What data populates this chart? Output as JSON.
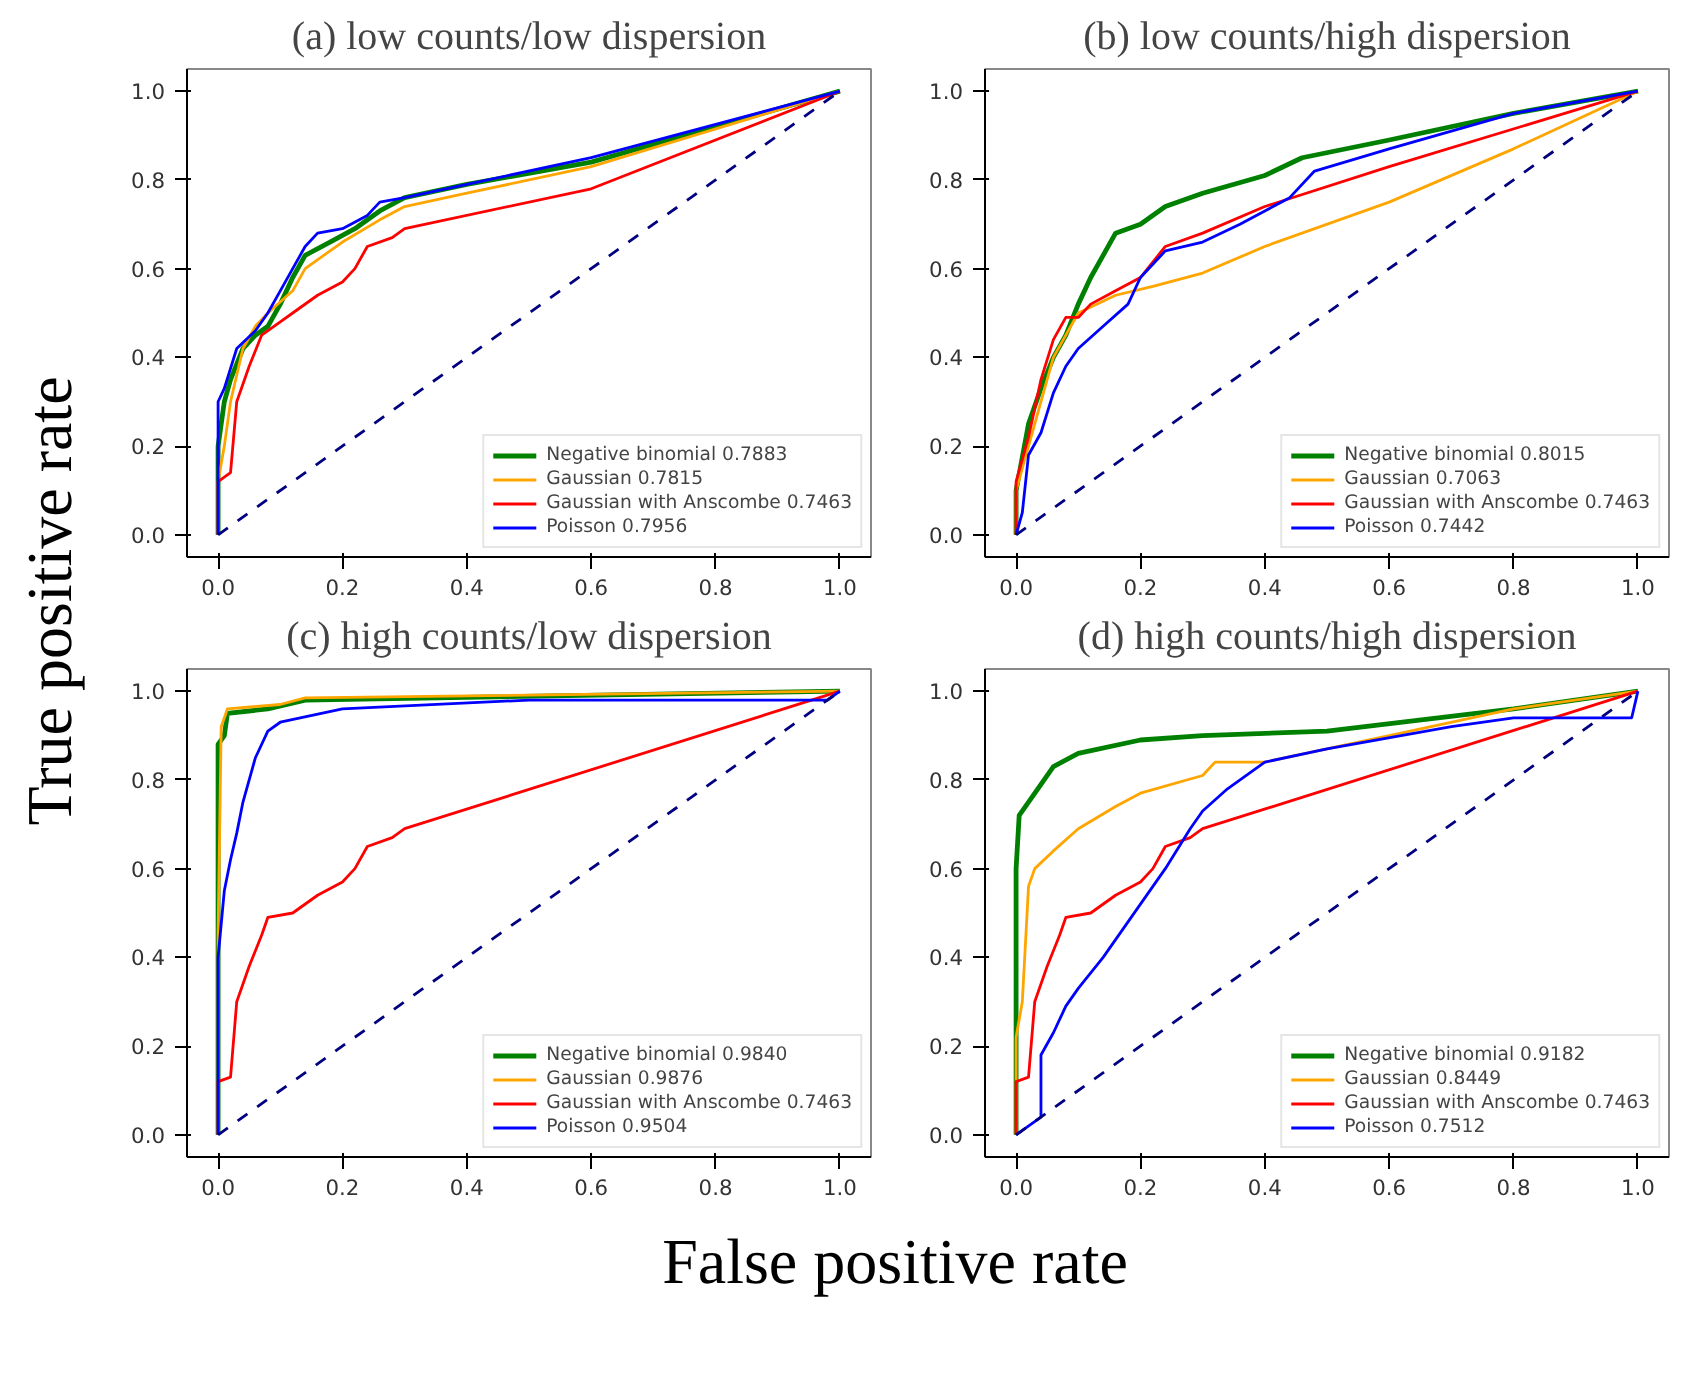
{
  "chart_data": [
    {
      "type": "line",
      "title": "(a) low counts/low dispersion",
      "ylabel": "True positive rate",
      "xlim": [
        -0.05,
        1.05
      ],
      "ylim": [
        -0.05,
        1.05
      ],
      "xticks": [
        {
          "value": 0,
          "label": "0.0"
        },
        {
          "value": 0.2,
          "label": "0.2"
        },
        {
          "value": 0.4,
          "label": "0.4"
        },
        {
          "value": 0.6,
          "label": "0.6"
        },
        {
          "value": 0.8,
          "label": "0.8"
        },
        {
          "value": 1,
          "label": "1.0"
        }
      ],
      "yticks": [
        {
          "value": 0,
          "label": "0.0"
        },
        {
          "value": 0.2,
          "label": "0.2"
        },
        {
          "value": 0.4,
          "label": "0.4"
        },
        {
          "value": 0.6,
          "label": "0.6"
        },
        {
          "value": 0.8,
          "label": "0.8"
        },
        {
          "value": 1,
          "label": "1.0"
        }
      ],
      "grid": false,
      "legend": "bottom right",
      "series": [
        {
          "name": "Negative binomial 0.7883",
          "color": "#008000",
          "x": [
            0,
            0,
            0.01,
            0.02,
            0.04,
            0.06,
            0.08,
            0.1,
            0.12,
            0.14,
            0.18,
            0.22,
            0.26,
            0.3,
            0.4,
            0.6,
            1
          ],
          "values": [
            0,
            0.2,
            0.3,
            0.35,
            0.42,
            0.45,
            0.47,
            0.52,
            0.58,
            0.63,
            0.66,
            0.69,
            0.73,
            0.76,
            0.79,
            0.84,
            1
          ]
        },
        {
          "name": "Gaussian 0.7815",
          "color": "#ffa500",
          "x": [
            0,
            0,
            0.01,
            0.02,
            0.04,
            0.06,
            0.08,
            0.12,
            0.14,
            0.2,
            0.26,
            0.3,
            0.4,
            0.6,
            1
          ],
          "values": [
            0,
            0.12,
            0.2,
            0.3,
            0.42,
            0.47,
            0.5,
            0.55,
            0.6,
            0.66,
            0.71,
            0.74,
            0.77,
            0.83,
            1
          ]
        },
        {
          "name": "Gaussian with Anscombe 0.7463",
          "color": "#ff0000",
          "x": [
            0,
            0,
            0.02,
            0.03,
            0.05,
            0.07,
            0.1,
            0.12,
            0.16,
            0.2,
            0.22,
            0.24,
            0.28,
            0.3,
            0.6,
            1
          ],
          "values": [
            0,
            0.12,
            0.14,
            0.3,
            0.38,
            0.45,
            0.48,
            0.5,
            0.54,
            0.57,
            0.6,
            0.65,
            0.67,
            0.69,
            0.78,
            1
          ]
        },
        {
          "name": "Poisson 0.7956",
          "color": "#0000ff",
          "x": [
            0,
            0,
            0.01,
            0.03,
            0.06,
            0.08,
            0.1,
            0.12,
            0.14,
            0.16,
            0.2,
            0.24,
            0.26,
            0.3,
            0.4,
            0.6,
            1
          ],
          "values": [
            0,
            0.3,
            0.33,
            0.42,
            0.46,
            0.5,
            0.55,
            0.6,
            0.65,
            0.68,
            0.69,
            0.72,
            0.75,
            0.76,
            0.79,
            0.85,
            1
          ]
        },
        {
          "color": "#000080",
          "line_style": "dashed",
          "x": [
            0,
            1
          ],
          "values": [
            0,
            1
          ]
        }
      ]
    },
    {
      "type": "line",
      "title": "(b) low counts/high dispersion",
      "xlim": [
        -0.05,
        1.05
      ],
      "ylim": [
        -0.05,
        1.05
      ],
      "xticks": [
        {
          "value": 0,
          "label": "0.0"
        },
        {
          "value": 0.2,
          "label": "0.2"
        },
        {
          "value": 0.4,
          "label": "0.4"
        },
        {
          "value": 0.6,
          "label": "0.6"
        },
        {
          "value": 0.8,
          "label": "0.8"
        },
        {
          "value": 1,
          "label": "1.0"
        }
      ],
      "yticks": [
        {
          "value": 0,
          "label": "0.0"
        },
        {
          "value": 0.2,
          "label": "0.2"
        },
        {
          "value": 0.4,
          "label": "0.4"
        },
        {
          "value": 0.6,
          "label": "0.6"
        },
        {
          "value": 0.8,
          "label": "0.8"
        },
        {
          "value": 1,
          "label": "1.0"
        }
      ],
      "grid": false,
      "legend": "bottom right",
      "series": [
        {
          "name": "Negative binomial 0.8015",
          "color": "#008000",
          "x": [
            0,
            0,
            0.02,
            0.04,
            0.06,
            0.08,
            0.1,
            0.12,
            0.14,
            0.16,
            0.2,
            0.24,
            0.3,
            0.4,
            0.46,
            0.6,
            0.8,
            1
          ],
          "values": [
            0,
            0.1,
            0.25,
            0.33,
            0.4,
            0.45,
            0.52,
            0.58,
            0.63,
            0.68,
            0.7,
            0.74,
            0.77,
            0.81,
            0.85,
            0.89,
            0.95,
            1
          ]
        },
        {
          "name": "Gaussian 0.7063",
          "color": "#ffa500",
          "x": [
            0,
            0,
            0.02,
            0.04,
            0.06,
            0.08,
            0.1,
            0.16,
            0.22,
            0.3,
            0.4,
            0.6,
            0.8,
            1
          ],
          "values": [
            0,
            0.1,
            0.2,
            0.3,
            0.4,
            0.45,
            0.5,
            0.54,
            0.56,
            0.59,
            0.65,
            0.75,
            0.87,
            1
          ]
        },
        {
          "name": "Gaussian with Anscombe 0.7463",
          "color": "#ff0000",
          "x": [
            0,
            0,
            0.02,
            0.04,
            0.06,
            0.08,
            0.1,
            0.12,
            0.16,
            0.2,
            0.24,
            0.3,
            0.4,
            0.6,
            1
          ],
          "values": [
            0,
            0.12,
            0.22,
            0.35,
            0.44,
            0.49,
            0.49,
            0.52,
            0.55,
            0.58,
            0.65,
            0.68,
            0.74,
            0.83,
            1
          ]
        },
        {
          "name": "Poisson 0.7442",
          "color": "#0000ff",
          "x": [
            0,
            0.01,
            0.02,
            0.04,
            0.06,
            0.08,
            0.1,
            0.14,
            0.18,
            0.2,
            0.24,
            0.3,
            0.36,
            0.4,
            0.44,
            0.48,
            0.6,
            0.8,
            1
          ],
          "values": [
            0,
            0.05,
            0.18,
            0.23,
            0.32,
            0.38,
            0.42,
            0.47,
            0.52,
            0.58,
            0.64,
            0.66,
            0.7,
            0.73,
            0.76,
            0.82,
            0.87,
            0.95,
            1
          ]
        },
        {
          "color": "#000080",
          "line_style": "dashed",
          "x": [
            0,
            1
          ],
          "values": [
            0,
            1
          ]
        }
      ]
    },
    {
      "type": "line",
      "title": "(c) high counts/low dispersion",
      "xlabel": "False positive rate",
      "xlim": [
        -0.05,
        1.05
      ],
      "ylim": [
        -0.05,
        1.05
      ],
      "xticks": [
        {
          "value": 0,
          "label": "0.0"
        },
        {
          "value": 0.2,
          "label": "0.2"
        },
        {
          "value": 0.4,
          "label": "0.4"
        },
        {
          "value": 0.6,
          "label": "0.6"
        },
        {
          "value": 0.8,
          "label": "0.8"
        },
        {
          "value": 1,
          "label": "1.0"
        }
      ],
      "yticks": [
        {
          "value": 0,
          "label": "0.0"
        },
        {
          "value": 0.2,
          "label": "0.2"
        },
        {
          "value": 0.4,
          "label": "0.4"
        },
        {
          "value": 0.6,
          "label": "0.6"
        },
        {
          "value": 0.8,
          "label": "0.8"
        },
        {
          "value": 1,
          "label": "1.0"
        }
      ],
      "grid": false,
      "legend": "bottom right",
      "series": [
        {
          "name": "Negative binomial 0.9840",
          "color": "#008000",
          "x": [
            0,
            0,
            0.01,
            0.015,
            0.08,
            0.14,
            1
          ],
          "values": [
            0,
            0.88,
            0.9,
            0.95,
            0.96,
            0.98,
            1
          ]
        },
        {
          "name": "Gaussian 0.9876",
          "color": "#ffa500",
          "x": [
            0,
            0,
            0.005,
            0.015,
            0.1,
            0.14,
            1
          ],
          "values": [
            0,
            0.45,
            0.92,
            0.96,
            0.97,
            0.985,
            1
          ]
        },
        {
          "name": "Gaussian with Anscombe 0.7463",
          "color": "#ff0000",
          "x": [
            0,
            0,
            0.02,
            0.03,
            0.05,
            0.07,
            0.08,
            0.12,
            0.16,
            0.2,
            0.22,
            0.24,
            0.28,
            0.3,
            1
          ],
          "values": [
            0,
            0.12,
            0.13,
            0.3,
            0.38,
            0.45,
            0.49,
            0.5,
            0.54,
            0.57,
            0.6,
            0.65,
            0.67,
            0.69,
            1
          ]
        },
        {
          "name": "Poisson 0.9504",
          "color": "#0000ff",
          "x": [
            0,
            0,
            0.01,
            0.02,
            0.03,
            0.04,
            0.06,
            0.08,
            0.1,
            0.2,
            0.5,
            0.98,
            1
          ],
          "values": [
            0,
            0.4,
            0.55,
            0.62,
            0.68,
            0.75,
            0.85,
            0.91,
            0.93,
            0.96,
            0.98,
            0.98,
            1
          ]
        },
        {
          "color": "#000080",
          "line_style": "dashed",
          "x": [
            0,
            1
          ],
          "values": [
            0,
            1
          ]
        }
      ]
    },
    {
      "type": "line",
      "title": "(d) high counts/high dispersion",
      "xlim": [
        -0.05,
        1.05
      ],
      "ylim": [
        -0.05,
        1.05
      ],
      "xticks": [
        {
          "value": 0,
          "label": "0.0"
        },
        {
          "value": 0.2,
          "label": "0.2"
        },
        {
          "value": 0.4,
          "label": "0.4"
        },
        {
          "value": 0.6,
          "label": "0.6"
        },
        {
          "value": 0.8,
          "label": "0.8"
        },
        {
          "value": 1,
          "label": "1.0"
        }
      ],
      "yticks": [
        {
          "value": 0,
          "label": "0.0"
        },
        {
          "value": 0.2,
          "label": "0.2"
        },
        {
          "value": 0.4,
          "label": "0.4"
        },
        {
          "value": 0.6,
          "label": "0.6"
        },
        {
          "value": 0.8,
          "label": "0.8"
        },
        {
          "value": 1,
          "label": "1.0"
        }
      ],
      "grid": false,
      "legend": "bottom right",
      "series": [
        {
          "name": "Negative binomial 0.9182",
          "color": "#008000",
          "x": [
            0,
            0,
            0.005,
            0.02,
            0.06,
            0.1,
            0.2,
            0.3,
            0.5,
            0.8,
            1
          ],
          "values": [
            0,
            0.6,
            0.72,
            0.75,
            0.83,
            0.86,
            0.89,
            0.9,
            0.91,
            0.96,
            1
          ]
        },
        {
          "name": "Gaussian 0.8449",
          "color": "#ffa500",
          "x": [
            0,
            0,
            0.01,
            0.02,
            0.03,
            0.06,
            0.1,
            0.16,
            0.2,
            0.3,
            0.32,
            0.4,
            0.6,
            0.8,
            1
          ],
          "values": [
            0,
            0.22,
            0.3,
            0.56,
            0.6,
            0.64,
            0.69,
            0.74,
            0.77,
            0.81,
            0.84,
            0.84,
            0.9,
            0.96,
            1
          ]
        },
        {
          "name": "Gaussian with Anscombe 0.7463",
          "color": "#ff0000",
          "x": [
            0,
            0,
            0.02,
            0.03,
            0.05,
            0.07,
            0.08,
            0.12,
            0.16,
            0.2,
            0.22,
            0.24,
            0.28,
            0.3,
            1
          ],
          "values": [
            0,
            0.12,
            0.13,
            0.3,
            0.38,
            0.45,
            0.49,
            0.5,
            0.54,
            0.57,
            0.6,
            0.65,
            0.67,
            0.69,
            1
          ]
        },
        {
          "name": "Poisson 0.7512",
          "color": "#0000ff",
          "x": [
            0,
            0.04,
            0.04,
            0.06,
            0.08,
            0.1,
            0.14,
            0.18,
            0.2,
            0.24,
            0.28,
            0.3,
            0.34,
            0.4,
            0.5,
            0.7,
            0.8,
            0.99,
            1
          ],
          "values": [
            0,
            0.04,
            0.18,
            0.23,
            0.29,
            0.33,
            0.4,
            0.48,
            0.52,
            0.6,
            0.69,
            0.73,
            0.78,
            0.84,
            0.87,
            0.92,
            0.94,
            0.94,
            1
          ]
        },
        {
          "color": "#000080",
          "line_style": "dashed",
          "x": [
            0,
            1
          ],
          "values": [
            0,
            1
          ]
        }
      ]
    }
  ]
}
